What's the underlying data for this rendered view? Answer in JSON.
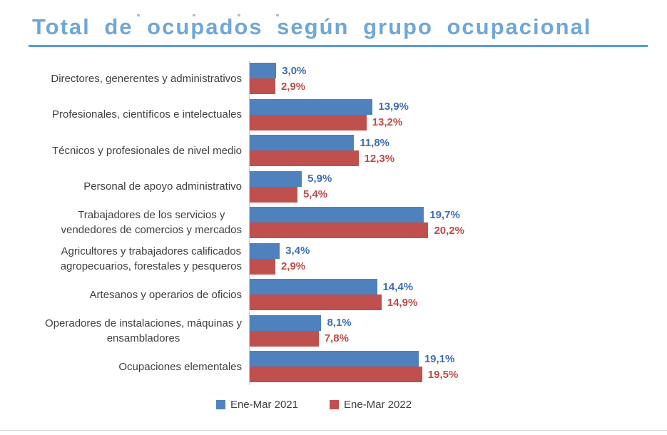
{
  "page": {
    "title": "Total de ocupados según grupo ocupacional"
  },
  "chart_data": {
    "type": "bar",
    "orientation": "horizontal",
    "title": "Total de ocupados según grupo ocupacional",
    "xlabel": "",
    "ylabel": "",
    "xlim": [
      0,
      22
    ],
    "grid": false,
    "legend_position": "bottom",
    "value_format": "percent, comma decimal",
    "categories": [
      "Directores, generentes y administrativos",
      "Profesionales, científicos e intelectuales",
      "Técnicos y profesionales de nivel medio",
      "Personal de apoyo administrativo",
      "Trabajadores de los servicios y\nvendedores de comercios y mercados",
      "Agricultores y trabajadores calificados\nagropecuarios, forestales y pesqueros",
      "Artesanos y operarios de oficios",
      "Operadores de instalaciones, máquinas y\nensambladores",
      "Ocupaciones elementales"
    ],
    "series": [
      {
        "name": "Ene-Mar 2021",
        "color": "#4F81BD",
        "label_color": "#3D6EB5",
        "values": [
          3.0,
          13.9,
          11.8,
          5.9,
          19.7,
          3.4,
          14.4,
          8.1,
          19.1
        ],
        "labels": [
          "3,0%",
          "13,9%",
          "11,8%",
          "5,9%",
          "19,7%",
          "3,4%",
          "14,4%",
          "8,1%",
          "19,1%"
        ]
      },
      {
        "name": "Ene-Mar 2022",
        "color": "#C0504D",
        "label_color": "#BE4B48",
        "values": [
          2.9,
          13.2,
          12.3,
          5.4,
          20.2,
          2.9,
          14.9,
          7.8,
          19.5
        ],
        "labels": [
          "2,9%",
          "13,2%",
          "12,3%",
          "5,4%",
          "20,2%",
          "2,9%",
          "14,9%",
          "7,8%",
          "19,5%"
        ]
      }
    ]
  },
  "legend": {
    "items": [
      {
        "label": "Ene-Mar 2021",
        "color": "#4F81BD"
      },
      {
        "label": "Ene-Mar 2022",
        "color": "#C0504D"
      }
    ]
  },
  "colors": {
    "title": "#6FA7D6",
    "title_rule": "#5B9BD5",
    "axis_line": "#C9C9C9",
    "category_text": "#404040",
    "legend_text": "#404040"
  }
}
